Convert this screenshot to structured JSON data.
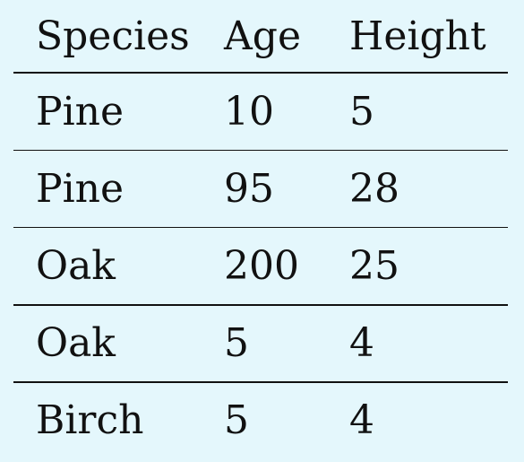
{
  "table": {
    "headers": {
      "species": "Species",
      "age": "Age",
      "height": "Height"
    },
    "rows": [
      {
        "species": "Pine",
        "age": "10",
        "height": "5"
      },
      {
        "species": "Pine",
        "age": "95",
        "height": "28"
      },
      {
        "species": "Oak",
        "age": "200",
        "height": "25"
      },
      {
        "species": "Oak",
        "age": "5",
        "height": "4"
      },
      {
        "species": "Birch",
        "age": "5",
        "height": "4"
      }
    ]
  },
  "colors": {
    "background": "#e4f7fc",
    "text": "#111111",
    "rules": "#111111"
  }
}
